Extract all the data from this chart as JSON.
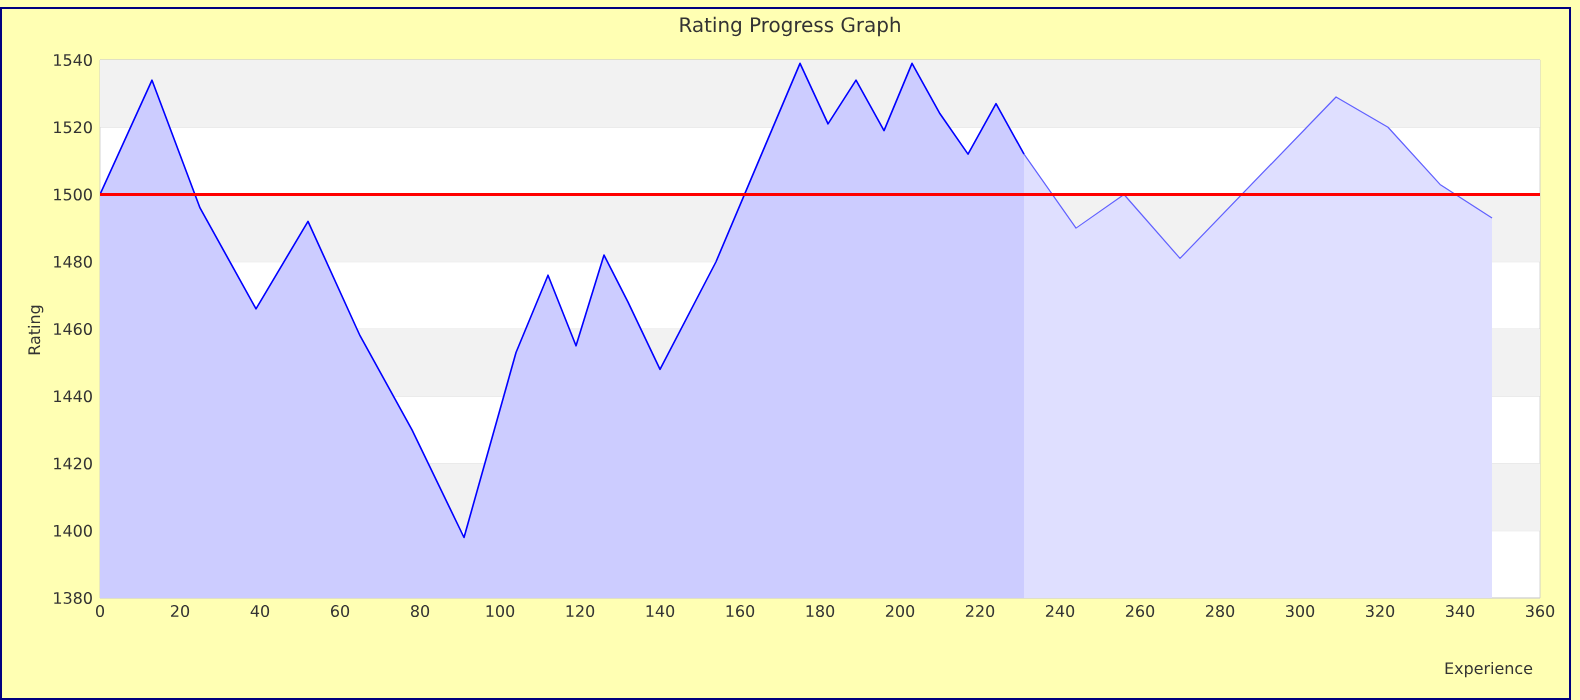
{
  "chart_data": {
    "type": "area",
    "title": "Rating Progress Graph",
    "xlabel": "Experience",
    "ylabel": "Rating",
    "series": [
      {
        "color": "#0000ff",
        "x": [
          0,
          13,
          25,
          39,
          52,
          65,
          78,
          91,
          104,
          112,
          119,
          126,
          132,
          140,
          154,
          175,
          182,
          189,
          196,
          203,
          210,
          217,
          224,
          231
        ],
        "values": [
          1500,
          1534,
          1496,
          1466,
          1492,
          1458,
          1430,
          1398,
          1453,
          1476,
          1455,
          1482,
          1468,
          1448,
          1480,
          1539,
          1521,
          1534,
          1519,
          1539,
          1524,
          1512,
          1527,
          1512
        ]
      },
      {
        "color": "#6060ff",
        "x": [
          231,
          244,
          256,
          270,
          309,
          322,
          335,
          348
        ],
        "values": [
          1512,
          1490,
          1500,
          1481,
          1529,
          1520,
          1503,
          1493
        ]
      }
    ],
    "xlim": [
      0,
      360
    ],
    "xticks": [
      0,
      20,
      40,
      60,
      80,
      100,
      120,
      140,
      160,
      180,
      200,
      220,
      240,
      260,
      280,
      300,
      320,
      340,
      360
    ],
    "ylim": [
      1380,
      1540
    ],
    "yticks": [
      1380,
      1400,
      1420,
      1440,
      1460,
      1480,
      1500,
      1520,
      1540
    ],
    "grid": "y",
    "ref_lines": [
      {
        "axis": "y",
        "value": 1500,
        "color": "#ff0000"
      }
    ]
  }
}
